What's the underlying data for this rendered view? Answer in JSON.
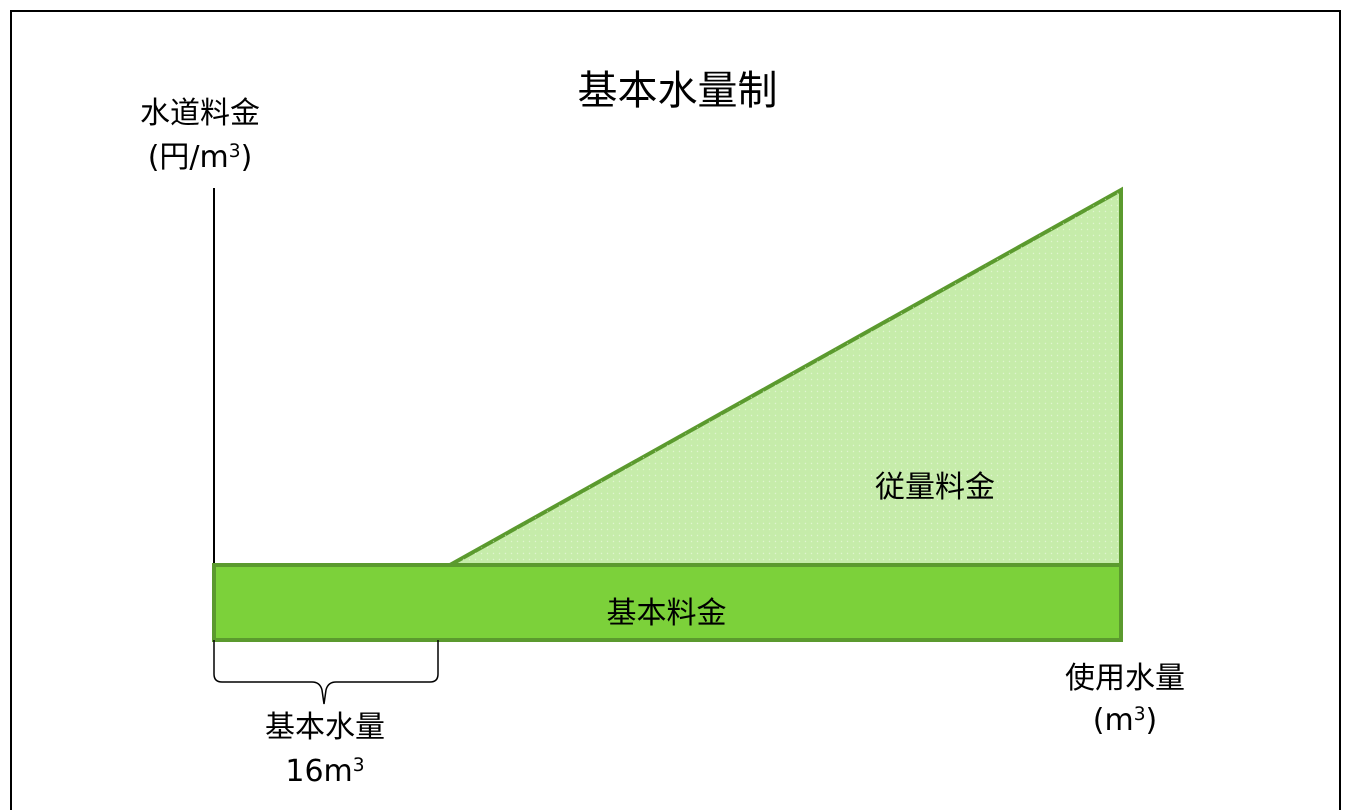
{
  "title": "基本水量制",
  "y_axis": {
    "line1": "水道料金",
    "line2_prefix": "(円/m",
    "sup": "3",
    "line2_suffix": ")"
  },
  "x_axis": {
    "line1": "使用水量",
    "line2_prefix": "(m",
    "sup": "3",
    "line2_suffix": ")"
  },
  "regions": {
    "base_fee": "基本料金",
    "variable_fee": "従量料金"
  },
  "base_volume": {
    "line1": "基本水量",
    "value": "16",
    "unit_prefix": "m",
    "sup": "3"
  },
  "colors": {
    "base_fill": "#7cd13a",
    "variable_fill": "#c6ecaa",
    "outline": "#5b9a2e",
    "axis": "#000000"
  }
}
